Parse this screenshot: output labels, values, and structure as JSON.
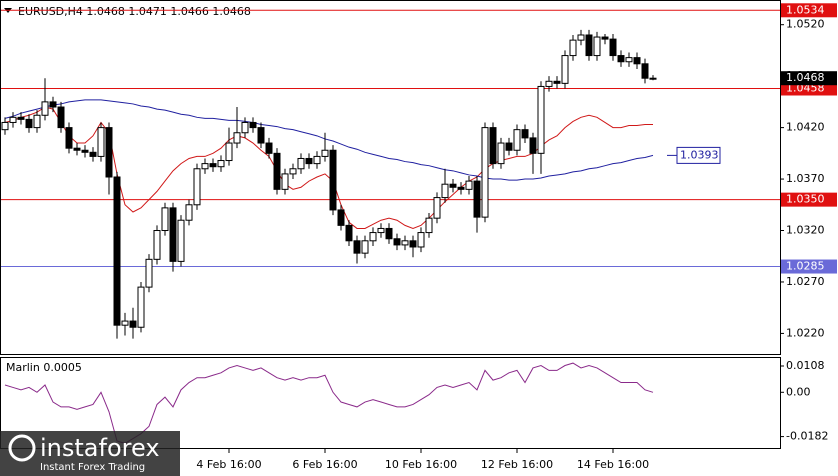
{
  "chart_data": [
    {
      "type": "candlestick",
      "title": "EURUSD,H4  1.0468 1.0471 1.0466 1.0468",
      "categories": [
        null,
        null,
        null,
        null,
        null,
        null,
        null,
        null,
        null,
        null,
        null,
        null,
        null,
        null,
        null,
        null,
        null,
        null,
        null,
        null,
        null,
        null,
        null,
        null,
        null,
        null,
        null,
        null,
        "4 Feb 16:00",
        null,
        null,
        null,
        null,
        null,
        null,
        null,
        null,
        null,
        null,
        null,
        "6 Feb 16:00",
        null,
        null,
        null,
        null,
        null,
        null,
        null,
        null,
        null,
        null,
        null,
        "10 Feb 16:00",
        null,
        null,
        null,
        null,
        null,
        null,
        null,
        null,
        null,
        null,
        null,
        "12 Feb 16:00",
        null,
        null,
        null,
        null,
        null,
        null,
        null,
        null,
        null,
        null,
        null,
        "14 Feb 16:00",
        null,
        null,
        null,
        null,
        null
      ],
      "open": [
        1.0418,
        1.0425,
        1.043,
        1.0428,
        1.042,
        1.0432,
        1.0445,
        1.044,
        1.042,
        1.04,
        1.0398,
        1.0396,
        1.0392,
        1.042,
        1.0372,
        1.0228,
        1.0232,
        1.0226,
        1.0265,
        1.0292,
        1.032,
        1.0342,
        1.029,
        1.033,
        1.0345,
        1.038,
        1.0385,
        1.0382,
        1.0388,
        1.0405,
        1.0415,
        1.0425,
        1.042,
        1.0405,
        1.0395,
        1.036,
        1.0375,
        1.038,
        1.039,
        1.0385,
        1.0392,
        1.0398,
        1.034,
        1.0325,
        1.031,
        1.0298,
        1.031,
        1.0318,
        1.0322,
        1.0312,
        1.0306,
        1.031,
        1.0304,
        1.0318,
        1.0332,
        1.0352,
        1.0365,
        1.0362,
        1.036,
        1.0368,
        1.0333,
        1.042,
        1.0385,
        1.0405,
        1.0398,
        1.0418,
        1.041,
        1.0395,
        1.046,
        1.0465,
        1.0463,
        1.049,
        1.0505,
        1.051,
        1.049,
        1.0508,
        1.0506,
        1.049,
        1.0484,
        1.0488,
        1.0482,
        1.0468
      ],
      "high": [
        1.043,
        1.0435,
        1.0435,
        1.0433,
        1.0437,
        1.0468,
        1.045,
        1.0445,
        1.0425,
        1.0405,
        1.0403,
        1.0401,
        1.0425,
        1.0425,
        1.0377,
        1.024,
        1.0245,
        1.027,
        1.0297,
        1.0325,
        1.0347,
        1.0347,
        1.0335,
        1.035,
        1.0385,
        1.039,
        1.039,
        1.0393,
        1.042,
        1.044,
        1.043,
        1.043,
        1.0425,
        1.041,
        1.04,
        1.038,
        1.0385,
        1.0395,
        1.0395,
        1.0397,
        1.0415,
        1.0403,
        1.0345,
        1.033,
        1.0315,
        1.0315,
        1.0323,
        1.0327,
        1.0327,
        1.0317,
        1.0315,
        1.0315,
        1.0323,
        1.0337,
        1.0357,
        1.038,
        1.037,
        1.0367,
        1.0373,
        1.0373,
        1.0425,
        1.0425,
        1.041,
        1.041,
        1.0423,
        1.0423,
        1.0415,
        1.0465,
        1.047,
        1.047,
        1.0495,
        1.051,
        1.0515,
        1.0515,
        1.0513,
        1.0511,
        1.0511,
        1.0495,
        1.0493,
        1.0493,
        1.0487,
        1.0471
      ],
      "low": [
        1.0413,
        1.042,
        1.0423,
        1.0415,
        1.0415,
        1.0427,
        1.0435,
        1.0415,
        1.0395,
        1.0393,
        1.0391,
        1.0387,
        1.0387,
        1.0355,
        1.0215,
        1.0218,
        1.0215,
        1.0221,
        1.026,
        1.0287,
        1.0315,
        1.028,
        1.0285,
        1.0325,
        1.034,
        1.0375,
        1.0377,
        1.0377,
        1.0383,
        1.04,
        1.041,
        1.0415,
        1.04,
        1.039,
        1.0355,
        1.0355,
        1.037,
        1.0375,
        1.038,
        1.038,
        1.0387,
        1.0335,
        1.032,
        1.0305,
        1.0288,
        1.0293,
        1.0305,
        1.0313,
        1.0307,
        1.0301,
        1.0301,
        1.0294,
        1.0299,
        1.0313,
        1.0327,
        1.0347,
        1.0357,
        1.0355,
        1.0355,
        1.0318,
        1.0328,
        1.038,
        1.038,
        1.0393,
        1.0393,
        1.0405,
        1.0375,
        1.0375,
        1.0455,
        1.0458,
        1.0458,
        1.0485,
        1.05,
        1.0485,
        1.0485,
        1.0501,
        1.0485,
        1.0479,
        1.0479,
        1.0477,
        1.0463,
        1.0466
      ],
      "close": [
        1.0425,
        1.043,
        1.0428,
        1.042,
        1.0432,
        1.0445,
        1.044,
        1.042,
        1.04,
        1.0398,
        1.0396,
        1.0392,
        1.042,
        1.0372,
        1.0228,
        1.0232,
        1.0226,
        1.0265,
        1.0292,
        1.032,
        1.0342,
        1.029,
        1.033,
        1.0345,
        1.038,
        1.0385,
        1.0382,
        1.0388,
        1.0405,
        1.0415,
        1.0425,
        1.042,
        1.0405,
        1.0395,
        1.036,
        1.0375,
        1.038,
        1.039,
        1.0385,
        1.0392,
        1.0398,
        1.034,
        1.0325,
        1.031,
        1.0298,
        1.031,
        1.0318,
        1.0322,
        1.0312,
        1.0306,
        1.031,
        1.0304,
        1.0318,
        1.0332,
        1.0352,
        1.0365,
        1.0362,
        1.036,
        1.0368,
        1.0333,
        1.042,
        1.0385,
        1.0405,
        1.0398,
        1.0418,
        1.041,
        1.0395,
        1.046,
        1.0465,
        1.0463,
        1.049,
        1.0505,
        1.051,
        1.049,
        1.0508,
        1.0506,
        1.049,
        1.0484,
        1.0488,
        1.0482,
        1.0468,
        1.0468
      ],
      "overlays": [
        {
          "color": "#d01818",
          "values": [
            1.0425,
            1.0427,
            1.043,
            1.0432,
            1.0435,
            1.044,
            1.0438,
            1.0425,
            1.0412,
            1.0405,
            1.0405,
            1.0412,
            1.0425,
            1.0415,
            1.0375,
            1.0345,
            1.0338,
            1.0342,
            1.035,
            1.0358,
            1.0368,
            1.0378,
            1.0385,
            1.039,
            1.0392,
            1.0392,
            1.0395,
            1.04,
            1.0408,
            1.0412,
            1.041,
            1.0405,
            1.0398,
            1.0392,
            1.0378,
            1.0365,
            1.036,
            1.0362,
            1.0368,
            1.0372,
            1.0375,
            1.0368,
            1.0345,
            1.0328,
            1.0322,
            1.0322,
            1.0326,
            1.033,
            1.0332,
            1.033,
            1.0325,
            1.0322,
            1.0325,
            1.0332,
            1.034,
            1.0348,
            1.0355,
            1.0362,
            1.0368,
            1.0372,
            1.038,
            1.0385,
            1.0388,
            1.039,
            1.0392,
            1.0392,
            1.0395,
            1.0402,
            1.0408,
            1.0412,
            1.042,
            1.0426,
            1.043,
            1.0432,
            1.043,
            1.0425,
            1.042,
            1.042,
            1.0422,
            1.0422,
            1.0423,
            1.0423
          ]
        },
        {
          "color": "#2020a0",
          "values": [
            1.0429,
            1.0431,
            1.0434,
            1.0436,
            1.0438,
            1.044,
            1.0442,
            1.0443,
            1.0445,
            1.0446,
            1.0447,
            1.0447,
            1.0447,
            1.0446,
            1.0445,
            1.0444,
            1.0443,
            1.0441,
            1.044,
            1.0438,
            1.0437,
            1.0435,
            1.0433,
            1.0432,
            1.043,
            1.0429,
            1.0429,
            1.0428,
            1.0427,
            1.0427,
            1.0426,
            1.0425,
            1.0423,
            1.0422,
            1.0421,
            1.0419,
            1.0418,
            1.0416,
            1.0414,
            1.0412,
            1.0409,
            1.0407,
            1.0404,
            1.0401,
            1.0399,
            1.0396,
            1.0394,
            1.0392,
            1.039,
            1.0389,
            1.0387,
            1.0386,
            1.0384,
            1.0383,
            1.0381,
            1.0379,
            1.0378,
            1.0376,
            1.0374,
            1.0373,
            1.0371,
            1.037,
            1.037,
            1.0369,
            1.0369,
            1.037,
            1.037,
            1.0371,
            1.0373,
            1.0374,
            1.0375,
            1.0377,
            1.0378,
            1.038,
            1.0381,
            1.0383,
            1.0385,
            1.0386,
            1.0388,
            1.039,
            1.0391,
            1.0393
          ],
          "end_label": {
            "value": 1.0393,
            "label": "1.0393"
          }
        }
      ],
      "hlines": [
        {
          "value": 1.0534,
          "label": "1.0534",
          "color": "#e01010"
        },
        {
          "value": 1.0458,
          "label": "1.0458",
          "color": "#e01010"
        },
        {
          "value": 1.035,
          "label": "1.0350",
          "color": "#e01010"
        },
        {
          "value": 1.0285,
          "label": "1.0285",
          "color": "#6a6ad8"
        }
      ],
      "last_price": {
        "value": 1.0468,
        "label": "1.0468"
      },
      "ylim": [
        1.02,
        1.0544
      ],
      "yticks": [
        {
          "value": 1.052,
          "label": "1.0520"
        },
        {
          "value": 1.047,
          "label": "1.0470"
        },
        {
          "value": 1.042,
          "label": "1.0420"
        },
        {
          "value": 1.037,
          "label": "1.0370"
        },
        {
          "value": 1.032,
          "label": "1.0320"
        },
        {
          "value": 1.027,
          "label": "1.0270"
        },
        {
          "value": 1.022,
          "label": "1.0220"
        }
      ],
      "bull_color": "#ffffff",
      "bear_color": "#000000"
    },
    {
      "type": "line",
      "title": "Marlin 0.0005",
      "color": "#8a2a8a",
      "values": [
        0.003,
        0.002,
        0.001,
        0.002,
        0.0,
        0.003,
        -0.004,
        -0.006,
        -0.006,
        -0.007,
        -0.006,
        -0.005,
        0.0,
        -0.008,
        -0.02,
        -0.021,
        -0.019,
        -0.017,
        -0.014,
        -0.005,
        -0.002,
        -0.006,
        0.001,
        0.004,
        0.006,
        0.006,
        0.007,
        0.008,
        0.01,
        0.011,
        0.01,
        0.009,
        0.01,
        0.008,
        0.006,
        0.005,
        0.006,
        0.005,
        0.006,
        0.006,
        0.007,
        0.0,
        -0.004,
        -0.005,
        -0.006,
        -0.004,
        -0.003,
        -0.004,
        -0.005,
        -0.006,
        -0.006,
        -0.005,
        -0.003,
        -0.001,
        0.002,
        0.003,
        0.002,
        0.003,
        0.004,
        0.001,
        0.009,
        0.005,
        0.006,
        0.008,
        0.009,
        0.004,
        0.01,
        0.011,
        0.009,
        0.009,
        0.011,
        0.012,
        0.01,
        0.011,
        0.01,
        0.008,
        0.006,
        0.004,
        0.004,
        0.004,
        0.001,
        0.0
      ],
      "ylim": [
        -0.0233,
        0.0145
      ],
      "yticks": [
        0.0108,
        {
          "value": 0,
          "label": "0.00"
        },
        -0.0182
      ]
    }
  ],
  "watermark": {
    "brand": "instaforex",
    "tagline": "Instant Forex Trading"
  }
}
